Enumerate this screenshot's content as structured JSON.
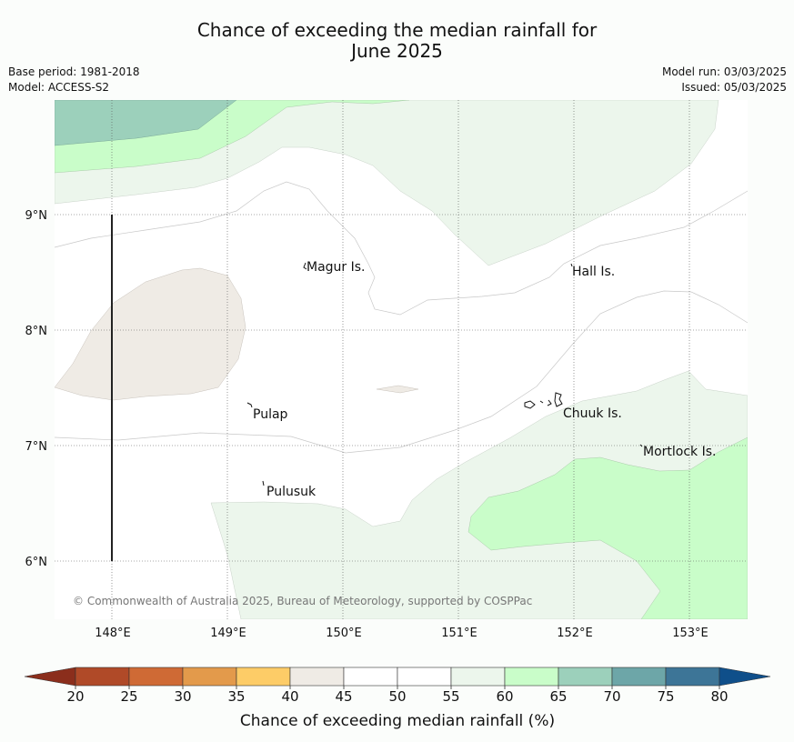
{
  "header": {
    "title_line1": "Chance of exceeding the median rainfall for",
    "title_line2": "June 2025",
    "base_period": "Base period: 1981-2018",
    "model": "Model: ACCESS-S2",
    "model_run": "Model run: 03/03/2025",
    "issued": "Issued: 05/03/2025"
  },
  "map": {
    "lon_range": [
      147.5,
      153.5
    ],
    "lat_range": [
      5.5,
      10.0
    ],
    "lon_ticks": [
      {
        "value": 148,
        "label": "148°E"
      },
      {
        "value": 149,
        "label": "149°E"
      },
      {
        "value": 150,
        "label": "150°E"
      },
      {
        "value": 151,
        "label": "151°E"
      },
      {
        "value": 152,
        "label": "152°E"
      },
      {
        "value": 153,
        "label": "153°E"
      }
    ],
    "lat_ticks": [
      {
        "value": 9,
        "label": "9°N"
      },
      {
        "value": 8,
        "label": "8°N"
      },
      {
        "value": 7,
        "label": "7°N"
      },
      {
        "value": 6,
        "label": "6°N"
      }
    ],
    "gridlines": true,
    "places": [
      {
        "name": "Magur Is.",
        "lon": 149.67,
        "lat": 8.55
      },
      {
        "name": "Hall Is.",
        "lon": 152.0,
        "lat": 8.52
      },
      {
        "name": "Pulap",
        "lon": 149.22,
        "lat": 7.3
      },
      {
        "name": "Chuuk Is.",
        "lon": 151.85,
        "lat": 7.32
      },
      {
        "name": "Mortlock Is.",
        "lon": 152.6,
        "lat": 6.97
      },
      {
        "name": "Pulusuk",
        "lon": 149.32,
        "lat": 6.62
      }
    ],
    "copyright": "© Commonwealth of Australia 2025, Bureau of Meteorology, supported by COSPPac"
  },
  "colorbar": {
    "title": "Chance of exceeding median rainfall (%)",
    "ticks": [
      "20",
      "25",
      "30",
      "35",
      "40",
      "45",
      "50",
      "55",
      "60",
      "65",
      "70",
      "75",
      "80"
    ],
    "under_color": "#8b2e1c",
    "over_color": "#0f4f8a",
    "colors": [
      "#b04a28",
      "#cf6a35",
      "#e39a4b",
      "#fdcc67",
      "#efebe5",
      "#ffffff",
      "#ffffff",
      "#ecf6ec",
      "#c9fdc9",
      "#9cd0bb",
      "#6da6a8",
      "#3d7597"
    ]
  }
}
